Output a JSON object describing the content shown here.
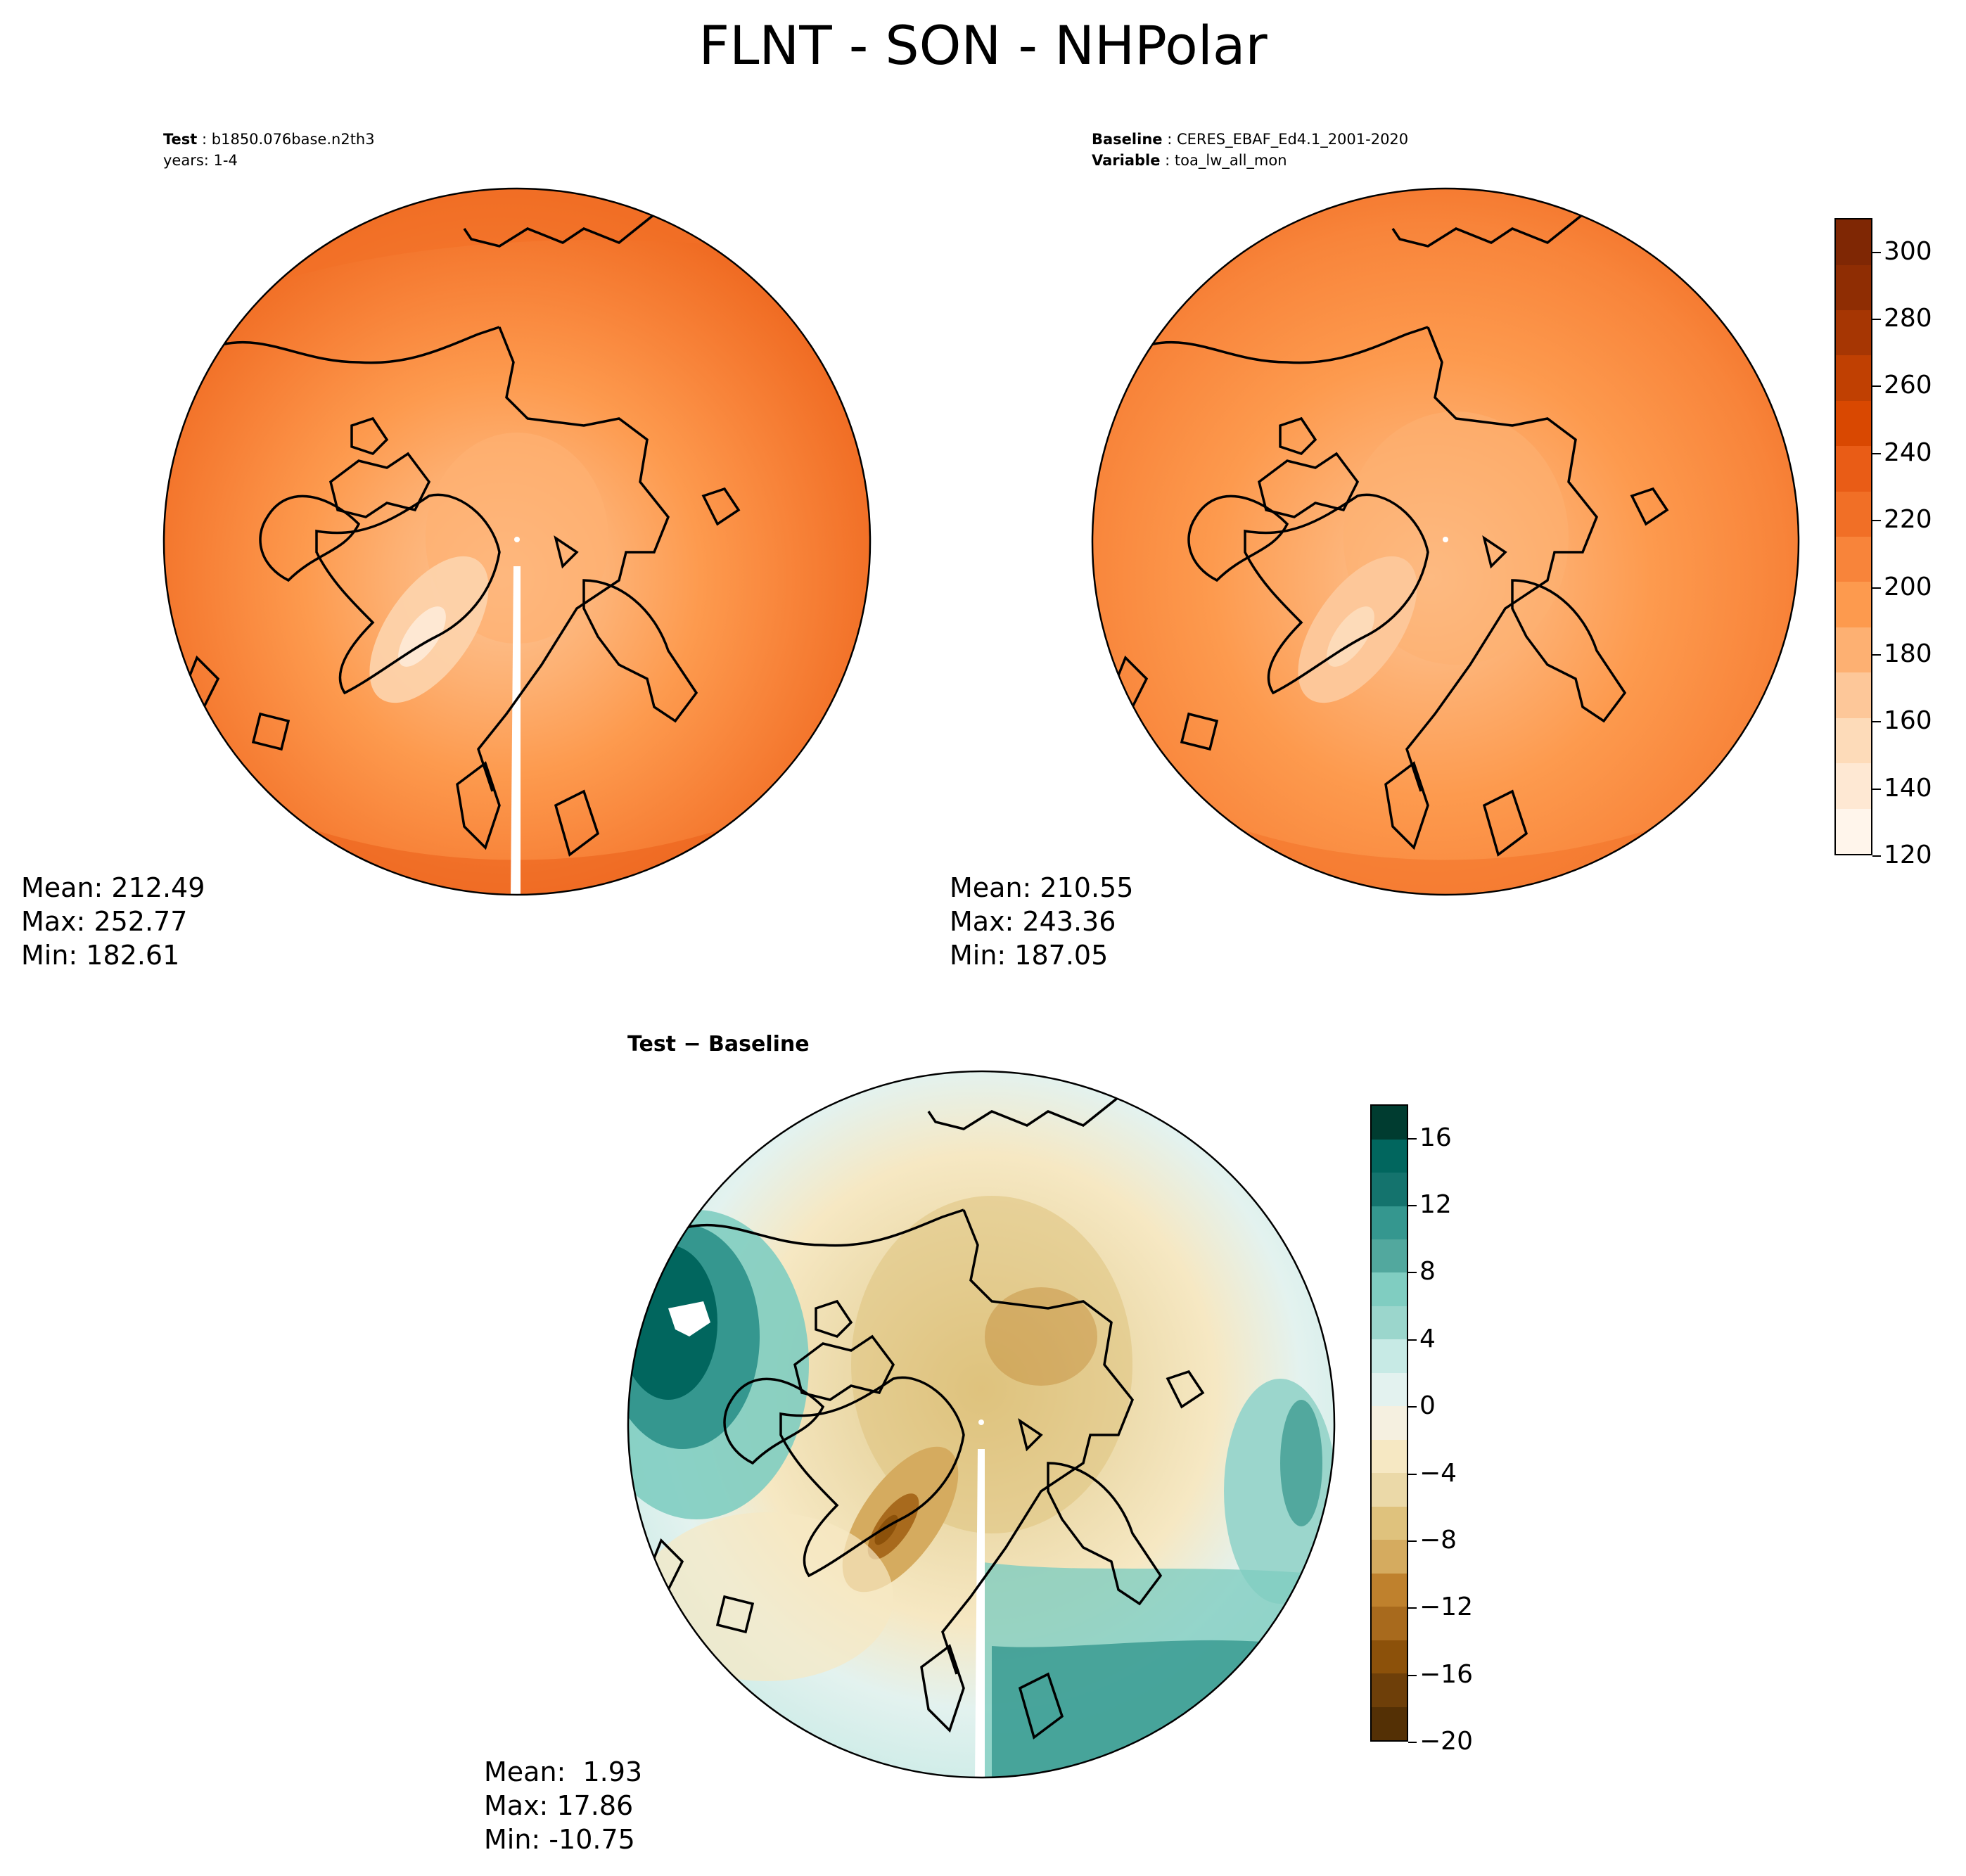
{
  "title": "FLNT - SON - NHPolar",
  "panels": {
    "test": {
      "header_line1_label": "Test",
      "header_line1_value": "b1850.076base.n2th3",
      "header_line2": "years: 1-4",
      "mean": "Mean: 212.49",
      "max": "Max: 252.77",
      "min": "Min: 182.61"
    },
    "baseline": {
      "header_line1_label": "Baseline",
      "header_line1_value": "CERES_EBAF_Ed4.1_2001-2020",
      "header_line2_label": "Variable",
      "header_line2_value": "toa_lw_all_mon",
      "mean": "Mean: 210.55",
      "max": "Max: 243.36",
      "min": "Min: 187.05"
    },
    "diff": {
      "title": "Test − Baseline",
      "mean": "Mean:  1.93",
      "max": "Max: 17.86",
      "min": "Min: -10.75"
    }
  },
  "colorbars": {
    "main": {
      "ticks": [
        "300",
        "280",
        "260",
        "240",
        "220",
        "200",
        "180",
        "160",
        "140",
        "120"
      ],
      "colormap": "Oranges",
      "colors": [
        "#fff5eb",
        "#fee8d3",
        "#fddbb9",
        "#fdc799",
        "#fdb072",
        "#fd9a4e",
        "#f8843a",
        "#f16f26",
        "#e95c16",
        "#d94801",
        "#c04002",
        "#a63603",
        "#8f2d03",
        "#7f2704"
      ]
    },
    "diff": {
      "ticks": [
        "16",
        "12",
        "8",
        "4",
        "0",
        "−4",
        "−8",
        "−12",
        "−16",
        "−20"
      ],
      "colormap": "BrBG",
      "colors": [
        "#543005",
        "#6e3f09",
        "#8c510a",
        "#a86a1d",
        "#bf812d",
        "#d5ab5f",
        "#dfc27d",
        "#ebd9a8",
        "#f6e8c3",
        "#f5f0e0",
        "#e3f2ef",
        "#c7eae5",
        "#9bd6cc",
        "#80cdc1",
        "#52a89e",
        "#35978f",
        "#14736d",
        "#01665e",
        "#003c30"
      ]
    }
  }
}
